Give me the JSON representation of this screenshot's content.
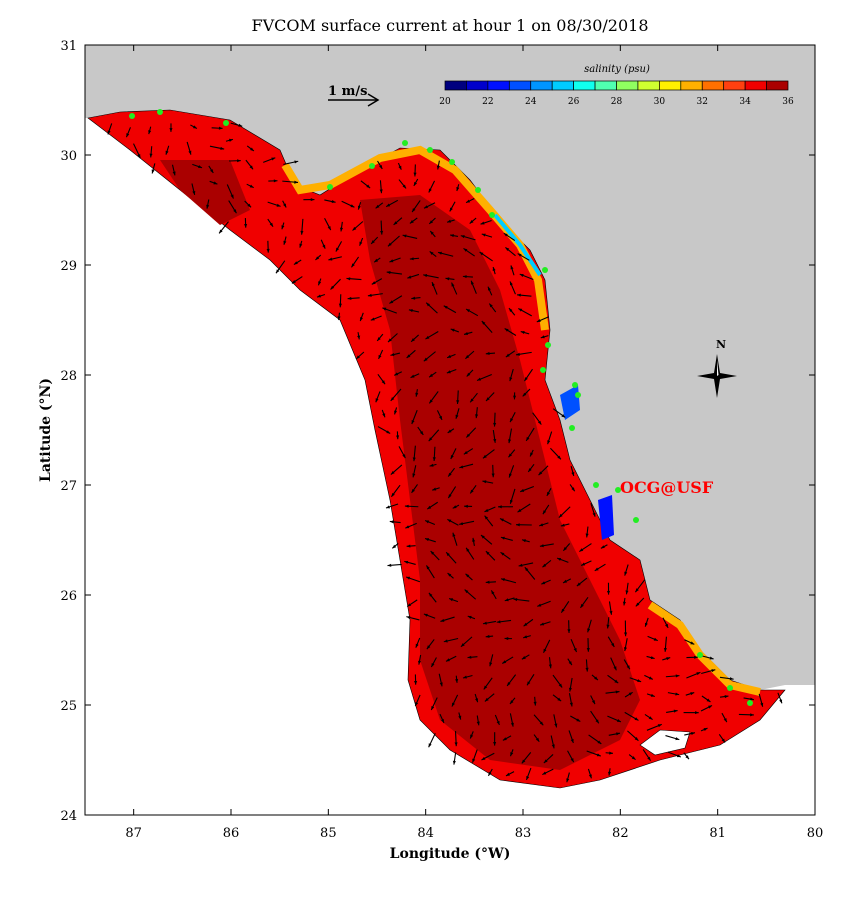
{
  "title": "FVCOM surface current at hour 1 on 08/30/2018",
  "xaxis": {
    "label": "Longitude (°W)",
    "ticks": [
      "87",
      "86",
      "85",
      "84",
      "83",
      "82",
      "81",
      "80"
    ],
    "range": [
      87.5,
      80
    ]
  },
  "yaxis": {
    "label": "Latitude (°N)",
    "ticks": [
      "31",
      "30",
      "29",
      "28",
      "27",
      "26",
      "25",
      "24"
    ],
    "range": [
      24,
      31
    ]
  },
  "scale_arrow_label": "1 m/s",
  "north_label": "N",
  "credit": "OCG@USF",
  "colors": {
    "land": "#c8c8c8",
    "credit": "#ff0000",
    "station": "#22ee22"
  },
  "colorbar": {
    "title": "salinity (psu)",
    "tick_labels": [
      "20",
      "22",
      "24",
      "26",
      "28",
      "30",
      "32",
      "34",
      "36"
    ],
    "colors": [
      "#00007f",
      "#0000cc",
      "#0010ff",
      "#0050ff",
      "#0095ff",
      "#00ccff",
      "#10ffee",
      "#50ffb0",
      "#90ff60",
      "#d0ff30",
      "#fff000",
      "#ffb000",
      "#ff7000",
      "#ff4010",
      "#f00000",
      "#aa0000"
    ]
  }
}
